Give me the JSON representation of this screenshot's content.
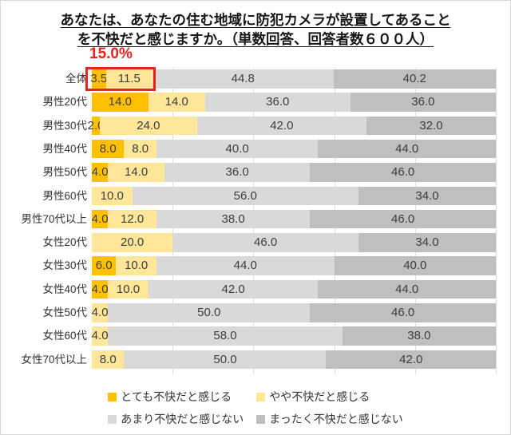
{
  "title": {
    "line1": "あなたは、あなたの住む地域に防犯カメラが設置してあること",
    "line2": "を不快だと感じますか。（単数回答、回答者数６００人）"
  },
  "chart_data": {
    "type": "bar",
    "stacked": true,
    "orientation": "horizontal",
    "xlim": [
      0,
      100
    ],
    "gridline_step": 20,
    "legend_position": "bottom",
    "categories": [
      "全体",
      "男性20代",
      "男性30代",
      "男性40代",
      "男性50代",
      "男性60代",
      "男性70代以上",
      "女性20代",
      "女性30代",
      "女性40代",
      "女性50代",
      "女性60代",
      "女性70代以上"
    ],
    "series": [
      {
        "name": "とても不快だと感じる",
        "color": "#FFC000",
        "values": [
          3.5,
          14.0,
          2.0,
          8.0,
          4.0,
          0,
          4.0,
          0,
          6.0,
          4.0,
          0,
          0,
          0
        ],
        "labels": [
          "3.5",
          "14.0",
          "2.0",
          "8.0",
          "4.0",
          "-",
          "4.0",
          "-",
          "6.0",
          "4.0",
          "",
          "",
          "-"
        ]
      },
      {
        "name": "やや不快だと感じる",
        "color": "#FFE699",
        "values": [
          11.5,
          14.0,
          24.0,
          8.0,
          14.0,
          10.0,
          12.0,
          20.0,
          10.0,
          10.0,
          4.0,
          4.0,
          8.0
        ],
        "labels": [
          "11.5",
          "14.0",
          "24.0",
          "8.0",
          "14.0",
          "10.0",
          "12.0",
          "20.0",
          "10.0",
          "10.0",
          "4.0",
          "4.0",
          "8.0"
        ]
      },
      {
        "name": "あまり不快だと感じない",
        "color": "#D9D9D9",
        "values": [
          44.8,
          36.0,
          42.0,
          40.0,
          36.0,
          56.0,
          38.0,
          46.0,
          44.0,
          42.0,
          50.0,
          58.0,
          50.0
        ],
        "labels": [
          "44.8",
          "36.0",
          "42.0",
          "40.0",
          "36.0",
          "56.0",
          "38.0",
          "46.0",
          "44.0",
          "42.0",
          "50.0",
          "58.0",
          "50.0"
        ]
      },
      {
        "name": "まったく不快だと感じない",
        "color": "#BFBFBF",
        "values": [
          40.2,
          36.0,
          32.0,
          44.0,
          46.0,
          34.0,
          46.0,
          34.0,
          40.0,
          44.0,
          46.0,
          38.0,
          42.0
        ],
        "labels": [
          "40.2",
          "36.0",
          "32.0",
          "44.0",
          "46.0",
          "34.0",
          "46.0",
          "34.0",
          "40.0",
          "44.0",
          "46.0",
          "38.0",
          "42.0"
        ]
      }
    ],
    "highlight": {
      "label": "15.0%",
      "color": "#e5231f",
      "category": "全体",
      "series_count": 2,
      "value_sum": 15.0
    }
  }
}
